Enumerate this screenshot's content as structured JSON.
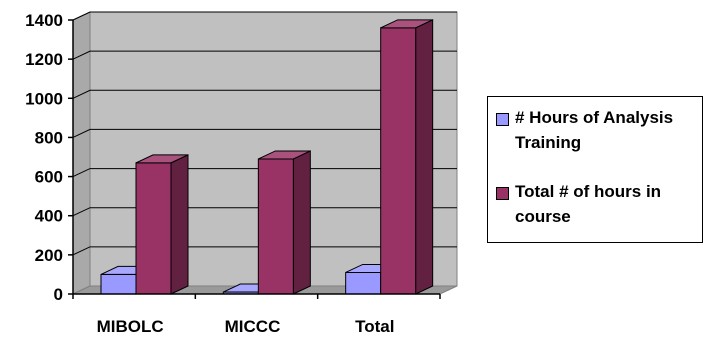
{
  "chart_data": {
    "type": "bar",
    "categories": [
      "MIBOLC",
      "MICCC",
      "Total"
    ],
    "series": [
      {
        "name": "# Hours of Analysis Training",
        "values": [
          100,
          10,
          110
        ],
        "color": "#9999ff"
      },
      {
        "name": "Total # of hours in course",
        "values": [
          670,
          690,
          1360
        ],
        "color": "#993366"
      }
    ],
    "ylim": [
      0,
      1400
    ],
    "yticks": [
      0,
      200,
      400,
      600,
      800,
      1000,
      1200,
      1400
    ],
    "grid": true,
    "legend_position": "right",
    "style": "3d-column",
    "wall_color": "#c0c0c0",
    "title": "",
    "xlabel": "",
    "ylabel": ""
  }
}
